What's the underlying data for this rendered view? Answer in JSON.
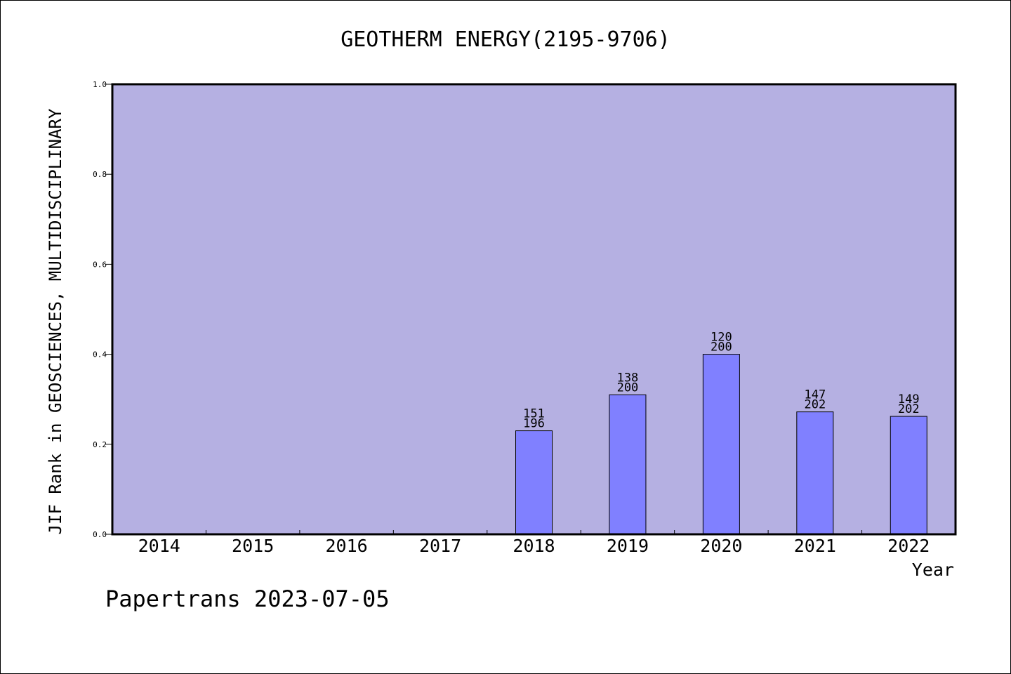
{
  "chart_data": {
    "type": "bar",
    "title": "GEOTHERM ENERGY(2195-9706)",
    "xlabel": "Year",
    "ylabel": "JIF Rank in GEOSCIENCES, MULTIDISCIPLINARY",
    "categories": [
      "2014",
      "2015",
      "2016",
      "2017",
      "2018",
      "2019",
      "2020",
      "2021",
      "2022"
    ],
    "values": [
      null,
      null,
      null,
      null,
      0.23,
      0.31,
      0.4,
      0.272,
      0.262
    ],
    "rank_labels": [
      null,
      null,
      null,
      null,
      {
        "rank": "151",
        "total": "196"
      },
      {
        "rank": "138",
        "total": "200"
      },
      {
        "rank": "120",
        "total": "200"
      },
      {
        "rank": "147",
        "total": "202"
      },
      {
        "rank": "149",
        "total": "202"
      }
    ],
    "ylim": [
      0,
      1.0
    ],
    "yticks": [
      "0.0",
      "0.2",
      "0.4",
      "0.6",
      "0.8",
      "1.0"
    ],
    "grid": false,
    "colors": {
      "plot_background": "#b5b0e2",
      "bar_fill": "#8080ff",
      "bar_stroke": "#000000"
    }
  },
  "footer": {
    "credit": "Papertrans 2023-07-05"
  }
}
